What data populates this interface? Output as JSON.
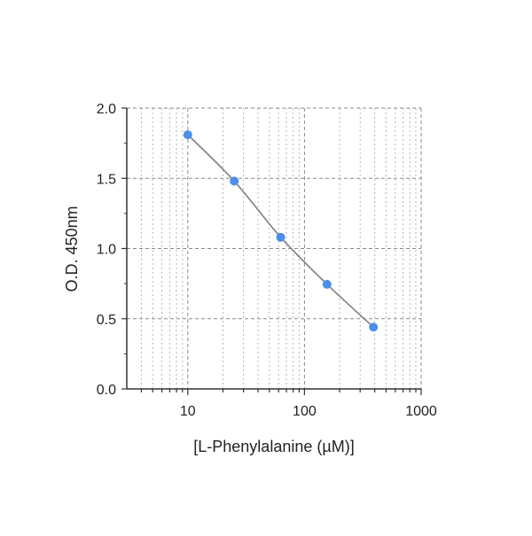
{
  "chart_data": {
    "type": "scatter",
    "title": "",
    "xlabel": "[L-Phenylalanine (µM)]",
    "ylabel": "O.D. 450nm",
    "x_scale": "log",
    "xlim": [
      3,
      1000
    ],
    "ylim": [
      0,
      2.0
    ],
    "x_tick_labels": [
      "10",
      "100",
      "1000"
    ],
    "x_ticks": [
      10,
      100,
      1000
    ],
    "y_tick_labels": [
      "0.0",
      "0.5",
      "1.0",
      "1.5",
      "2.0"
    ],
    "y_ticks": [
      0,
      0.5,
      1.0,
      1.5,
      2.0
    ],
    "grid": true,
    "series": [
      {
        "x": [
          10,
          25,
          62.5,
          156,
          390
        ],
        "y": [
          1.81,
          1.48,
          1.08,
          0.745,
          0.44
        ],
        "marker_color": "#4a90e8",
        "line_color": "#808080",
        "fit": "smooth curve"
      }
    ]
  }
}
